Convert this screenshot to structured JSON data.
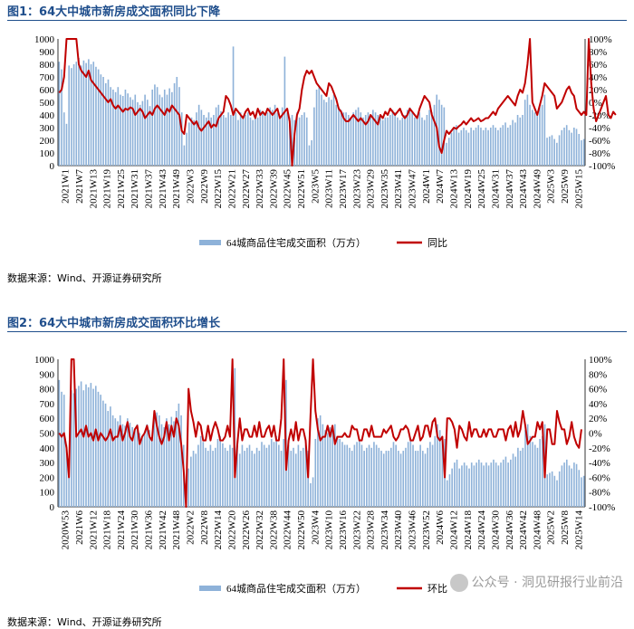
{
  "figures": [
    {
      "title": "图1：64大中城市新房成交面积同比下降",
      "source": "数据来源：Wind、开源证券研究所",
      "legend": {
        "bar": "64城商品住宅成交面积（万方）",
        "line": "同比"
      }
    },
    {
      "title": "图2：64大中城市新房成交面积环比增长",
      "source": "数据来源：Wind、开源证券研究所",
      "legend": {
        "bar": "64城商品住宅成交面积（万方）",
        "line": "环比"
      }
    }
  ],
  "watermark": "公众号 · 洞见研报行业前沿",
  "colors": {
    "bar": "#8eb2d9",
    "line": "#c00000",
    "title": "#1f4e8c"
  },
  "chart_data": [
    {
      "type": "bar+line",
      "left_axis": {
        "range": [
          0,
          1000
        ],
        "ticks": [
          "0",
          "100",
          "200",
          "300",
          "400",
          "500",
          "600",
          "700",
          "800",
          "900",
          "1000"
        ]
      },
      "right_axis": {
        "range": [
          -100,
          100
        ],
        "ticks": [
          "-100%",
          "-80%",
          "-60%",
          "-40%",
          "-20%",
          "0%",
          "20%",
          "40%",
          "60%",
          "80%",
          "100%"
        ]
      },
      "x_tick_labels": [
        "2021W1",
        "2021W7",
        "2021W13",
        "2021W19",
        "2021W25",
        "2021W31",
        "2021W37",
        "2021W43",
        "2021W49",
        "2022W3",
        "2022W9",
        "2022W15",
        "2022W21",
        "2022W27",
        "2022W33",
        "2022W39",
        "2022W45",
        "2022W51",
        "2023W5",
        "2023W11",
        "2023W17",
        "2023W23",
        "2023W29",
        "2023W35",
        "2023W41",
        "2023W47",
        "2024W1",
        "2024W7",
        "2024W13",
        "2024W19",
        "2024W25",
        "2024W31",
        "2024W37",
        "2024W43",
        "2024W49",
        "2025W3",
        "2025W9",
        "2025W15"
      ],
      "series": [
        {
          "name": "64城商品住宅成交面积（万方）",
          "axis": "left",
          "values": [
            820,
            760,
            420,
            330,
            790,
            770,
            800,
            820,
            850,
            790,
            830,
            810,
            840,
            800,
            820,
            780,
            760,
            720,
            700,
            650,
            680,
            620,
            600,
            580,
            620,
            560,
            550,
            600,
            570,
            540,
            520,
            560,
            500,
            480,
            510,
            560,
            520,
            470,
            600,
            640,
            620,
            560,
            540,
            600,
            560,
            610,
            580,
            650,
            700,
            620,
            420,
            160,
            260,
            340,
            380,
            360,
            420,
            480,
            440,
            400,
            380,
            420,
            380,
            400,
            460,
            480,
            430,
            400,
            380,
            420,
            400,
            940,
            420,
            360,
            420,
            380,
            400,
            420,
            380,
            360,
            400,
            380,
            440,
            420,
            400,
            420,
            460,
            440,
            480,
            420,
            380,
            460,
            860,
            420,
            380,
            400,
            360,
            420,
            380,
            400,
            420,
            380,
            160,
            200,
            460,
            600,
            620,
            560,
            520,
            500,
            540,
            520,
            560,
            480,
            460,
            440,
            420,
            420,
            400,
            380,
            420,
            440,
            460,
            420,
            380,
            400,
            420,
            400,
            440,
            420,
            400,
            380,
            360,
            380,
            380,
            400,
            440,
            420,
            380,
            360,
            380,
            400,
            440,
            460,
            420,
            380,
            380,
            420,
            380,
            360,
            400,
            440,
            420,
            480,
            560,
            520,
            480,
            460,
            180,
            220,
            260,
            300,
            320,
            260,
            280,
            300,
            280,
            260,
            300,
            280,
            300,
            320,
            300,
            280,
            300,
            280,
            300,
            320,
            300,
            280,
            300,
            320,
            340,
            300,
            320,
            360,
            340,
            400,
            380,
            400,
            520,
            560,
            480,
            440,
            420,
            400,
            460,
            480,
            560,
            220,
            230,
            240,
            210,
            180,
            240,
            280,
            300,
            320,
            280,
            260,
            300,
            290,
            250,
            200,
            210
          ]
        },
        {
          "name": "同比",
          "axis": "right",
          "values": [
            15,
            20,
            40,
            100,
            100,
            100,
            100,
            100,
            60,
            50,
            45,
            40,
            50,
            35,
            30,
            25,
            20,
            15,
            10,
            5,
            0,
            5,
            -5,
            -10,
            -5,
            -10,
            -15,
            -10,
            -12,
            -8,
            -10,
            -20,
            -15,
            -10,
            -15,
            -25,
            -20,
            -15,
            -20,
            -10,
            -5,
            -10,
            -15,
            -20,
            -10,
            -15,
            -5,
            -10,
            -15,
            -20,
            -45,
            -50,
            -20,
            -25,
            -30,
            -35,
            -30,
            -40,
            -45,
            -40,
            -35,
            -30,
            -40,
            -35,
            -38,
            -25,
            -20,
            -15,
            10,
            5,
            -5,
            -20,
            -10,
            -15,
            -20,
            -25,
            -15,
            -10,
            -20,
            -15,
            -25,
            -10,
            -20,
            -15,
            -20,
            -10,
            -15,
            -20,
            -15,
            -10,
            -25,
            -20,
            -15,
            -10,
            -30,
            -100,
            -50,
            -20,
            -10,
            20,
            40,
            50,
            45,
            50,
            40,
            30,
            25,
            20,
            15,
            10,
            30,
            25,
            15,
            5,
            -10,
            -15,
            -25,
            -30,
            -30,
            -25,
            -20,
            -25,
            -30,
            -25,
            -30,
            -35,
            -30,
            -20,
            -25,
            -30,
            -35,
            -20,
            -25,
            -15,
            -20,
            -10,
            -15,
            -20,
            -15,
            -10,
            -20,
            -25,
            -20,
            -10,
            -15,
            -20,
            -25,
            -10,
            0,
            10,
            5,
            0,
            -20,
            -30,
            -40,
            -70,
            -80,
            -60,
            -45,
            -50,
            -45,
            -40,
            -42,
            -38,
            -35,
            -30,
            -35,
            -30,
            -25,
            -30,
            -28,
            -25,
            -30,
            -28,
            -25,
            -25,
            -20,
            -15,
            -20,
            -10,
            -5,
            0,
            5,
            10,
            5,
            0,
            -5,
            10,
            20,
            15,
            30,
            60,
            100,
            0,
            -10,
            -20,
            -5,
            10,
            30,
            25,
            20,
            15,
            10,
            -10,
            -5,
            0,
            10,
            20,
            25,
            15,
            10,
            -10,
            -15,
            -20,
            -15,
            -20,
            100,
            30,
            -10,
            -30,
            -20,
            -10,
            0,
            10,
            -20,
            -25,
            -15,
            -20
          ]
        }
      ]
    },
    {
      "type": "bar+line",
      "left_axis": {
        "range": [
          0,
          1000
        ],
        "ticks": [
          "0",
          "100",
          "200",
          "300",
          "400",
          "500",
          "600",
          "700",
          "800",
          "900",
          "1000"
        ]
      },
      "right_axis": {
        "range": [
          -100,
          100
        ],
        "ticks": [
          "-100%",
          "-80%",
          "-60%",
          "-40%",
          "-20%",
          "0%",
          "20%",
          "40%",
          "60%",
          "80%",
          "100%"
        ]
      },
      "x_tick_labels": [
        "2020W53",
        "2021W6",
        "2021W12",
        "2021W18",
        "2021W24",
        "2021W30",
        "2021W36",
        "2021W42",
        "2021W48",
        "2022W2",
        "2022W8",
        "2022W14",
        "2022W20",
        "2022W26",
        "2022W32",
        "2022W38",
        "2022W44",
        "2022W50",
        "2023W4",
        "2023W10",
        "2023W16",
        "2023W22",
        "2023W28",
        "2023W34",
        "2023W40",
        "2023W46",
        "2023W52",
        "2024W6",
        "2024W12",
        "2024W18",
        "2024W24",
        "2024W30",
        "2024W36",
        "2024W42",
        "2024W48",
        "2025W2",
        "2025W8",
        "2025W14"
      ],
      "series": [
        {
          "name": "64城商品住宅成交面积（万方）",
          "axis": "left",
          "values": [
            860,
            780,
            760,
            420,
            330,
            790,
            770,
            800,
            820,
            850,
            790,
            830,
            810,
            840,
            800,
            820,
            780,
            760,
            720,
            700,
            650,
            680,
            620,
            600,
            580,
            620,
            560,
            550,
            600,
            570,
            540,
            520,
            560,
            500,
            480,
            510,
            560,
            520,
            470,
            600,
            640,
            620,
            560,
            540,
            600,
            560,
            610,
            580,
            650,
            700,
            620,
            420,
            160,
            260,
            340,
            380,
            360,
            420,
            480,
            440,
            400,
            380,
            420,
            380,
            400,
            460,
            480,
            430,
            400,
            380,
            420,
            400,
            940,
            420,
            360,
            420,
            380,
            400,
            420,
            380,
            360,
            400,
            380,
            440,
            420,
            400,
            420,
            460,
            440,
            480,
            420,
            380,
            460,
            860,
            420,
            380,
            400,
            360,
            420,
            380,
            400,
            420,
            380,
            160,
            200,
            460,
            600,
            620,
            560,
            520,
            500,
            540,
            520,
            560,
            480,
            460,
            440,
            420,
            420,
            400,
            380,
            420,
            440,
            460,
            420,
            380,
            400,
            420,
            400,
            440,
            420,
            400,
            380,
            360,
            380,
            380,
            400,
            440,
            420,
            380,
            360,
            380,
            400,
            440,
            460,
            420,
            380,
            380,
            420,
            380,
            360,
            400,
            440,
            420,
            480,
            560,
            520,
            480,
            460,
            180,
            220,
            260,
            300,
            320,
            260,
            280,
            300,
            280,
            260,
            300,
            280,
            300,
            320,
            300,
            280,
            300,
            280,
            300,
            320,
            300,
            280,
            300,
            320,
            340,
            300,
            320,
            360,
            340,
            400,
            380,
            400,
            520,
            560,
            480,
            440,
            420,
            400,
            460,
            480,
            560,
            220,
            230,
            240,
            210,
            180,
            240,
            280,
            300,
            320,
            280,
            260,
            300,
            290,
            250,
            200,
            210
          ]
        },
        {
          "name": "环比",
          "axis": "right",
          "values": [
            0,
            -5,
            0,
            -20,
            -60,
            100,
            100,
            -5,
            0,
            5,
            -5,
            10,
            -5,
            0,
            -10,
            5,
            -10,
            0,
            -5,
            -10,
            -5,
            5,
            -10,
            -5,
            -5,
            10,
            -10,
            0,
            15,
            -5,
            -10,
            5,
            10,
            -15,
            -5,
            0,
            10,
            -5,
            -10,
            30,
            10,
            -5,
            -15,
            -5,
            15,
            -10,
            10,
            -5,
            20,
            10,
            -15,
            -50,
            -100,
            60,
            30,
            15,
            -5,
            15,
            10,
            -10,
            -10,
            10,
            -10,
            5,
            15,
            5,
            -10,
            -10,
            -5,
            10,
            -5,
            135,
            -60,
            -15,
            20,
            -10,
            5,
            5,
            -5,
            -5,
            10,
            -5,
            15,
            -5,
            -5,
            5,
            10,
            -5,
            10,
            -10,
            -10,
            20,
            100,
            -50,
            -10,
            5,
            -10,
            15,
            -10,
            5,
            5,
            -10,
            -60,
            25,
            130,
            30,
            5,
            -10,
            -5,
            -5,
            10,
            -5,
            10,
            -15,
            -5,
            -5,
            -5,
            0,
            -5,
            -5,
            10,
            5,
            5,
            -10,
            -10,
            5,
            5,
            -5,
            10,
            -5,
            -5,
            -5,
            -5,
            5,
            0,
            5,
            10,
            -5,
            -10,
            -5,
            5,
            5,
            10,
            5,
            -10,
            -10,
            0,
            10,
            -10,
            -5,
            10,
            10,
            -5,
            15,
            20,
            -5,
            -10,
            -5,
            -60,
            20,
            20,
            15,
            5,
            -20,
            10,
            5,
            -5,
            -10,
            15,
            -5,
            5,
            5,
            -5,
            -5,
            5,
            -5,
            5,
            5,
            -5,
            -5,
            5,
            5,
            5,
            -10,
            5,
            10,
            -5,
            15,
            -5,
            5,
            30,
            10,
            -15,
            -10,
            -5,
            -5,
            15,
            5,
            15,
            -60,
            5,
            5,
            -15,
            -15,
            30,
            15,
            5,
            5,
            -15,
            -5,
            15,
            -5,
            -15,
            -20,
            5
          ]
        }
      ]
    }
  ]
}
